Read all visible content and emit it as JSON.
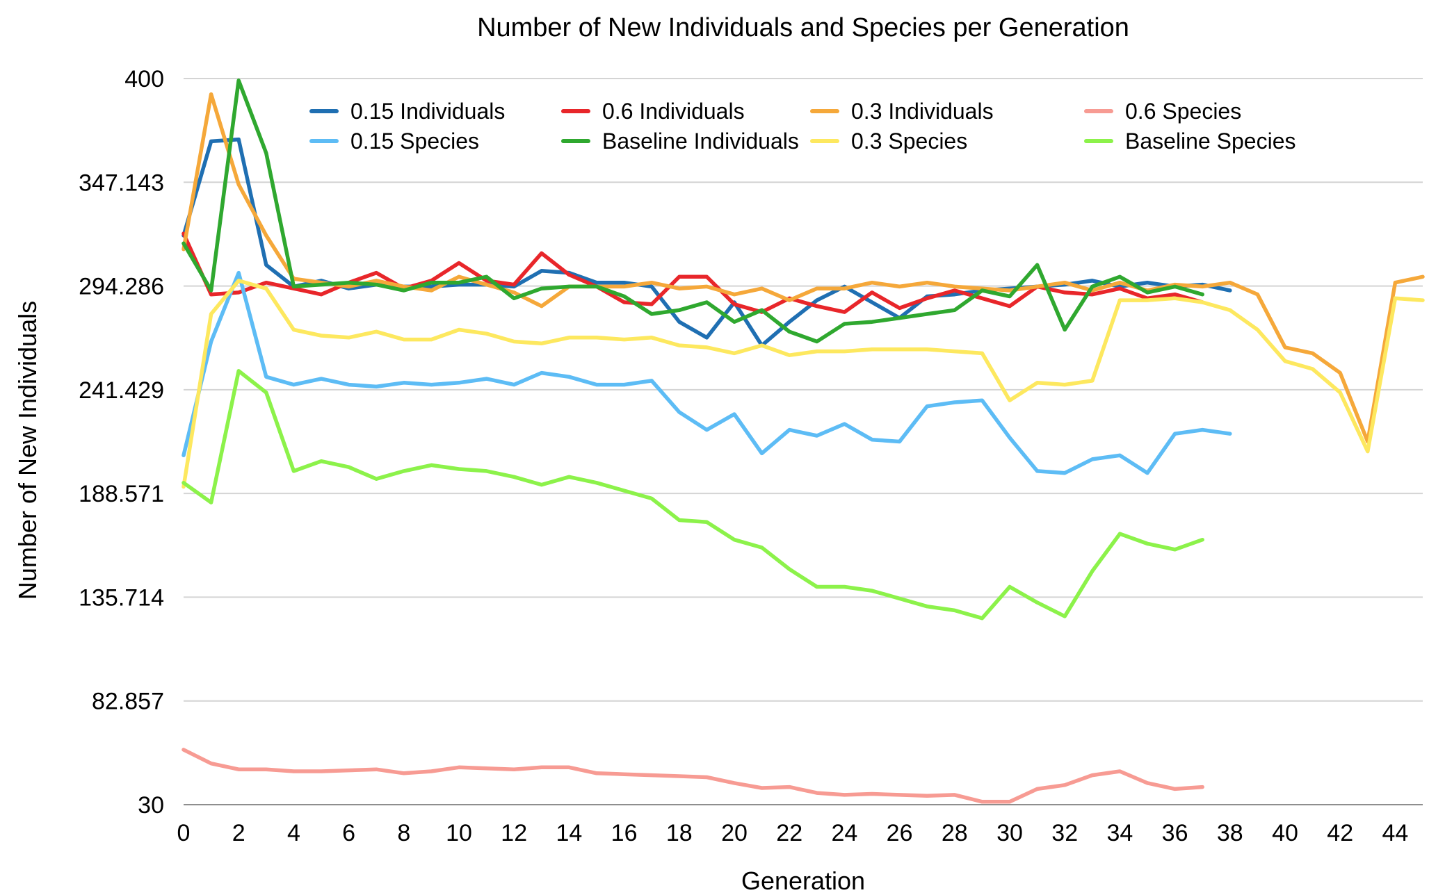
{
  "chart_data": {
    "type": "line",
    "title": "Number of New Individuals and Species per Generation",
    "xlabel": "Generation",
    "ylabel": "Number of New Individuals",
    "xlim": [
      0,
      45
    ],
    "ylim": [
      30,
      400
    ],
    "x_ticks": [
      "0",
      "2",
      "4",
      "6",
      "8",
      "10",
      "12",
      "14",
      "16",
      "18",
      "20",
      "22",
      "24",
      "26",
      "28",
      "30",
      "32",
      "34",
      "36",
      "38",
      "40",
      "42",
      "44"
    ],
    "y_ticks": [
      "30",
      "82.857",
      "135.714",
      "188.571",
      "241.429",
      "294.286",
      "347.143",
      "400"
    ],
    "grid": "horizontal",
    "legend_position": "top",
    "series": [
      {
        "name": "0.15 Individuals",
        "color": "#1f6fb2",
        "values": [
          320,
          368,
          369,
          305,
          294,
          297,
          293,
          295,
          294,
          294,
          295,
          295,
          294,
          302,
          301,
          296,
          296,
          294,
          276,
          268,
          286,
          264,
          276,
          287,
          294,
          286,
          278,
          289,
          290,
          292,
          293,
          294,
          295,
          297,
          294,
          296,
          294,
          295,
          292
        ]
      },
      {
        "name": "0.6 Individuals",
        "color": "#e8262a",
        "values": [
          321,
          290,
          291,
          296,
          293,
          290,
          296,
          301,
          293,
          297,
          306,
          297,
          295,
          311,
          300,
          294,
          286,
          285,
          299,
          299,
          285,
          281,
          288,
          284,
          281,
          291,
          283,
          288,
          292,
          288,
          284,
          294,
          291,
          290,
          293,
          288,
          290,
          286
        ]
      },
      {
        "name": "0.3 Individuals",
        "color": "#f5a83a",
        "values": [
          313,
          392,
          346,
          320,
          298,
          296,
          294,
          297,
          294,
          292,
          299,
          295,
          291,
          284,
          294,
          294,
          294,
          296,
          293,
          294,
          290,
          293,
          287,
          293,
          293,
          296,
          294,
          296,
          294,
          293,
          292,
          294,
          296,
          292,
          296,
          292,
          295,
          294,
          296,
          290,
          263,
          260,
          250,
          215,
          296,
          299
        ]
      },
      {
        "name": "0.6 Species",
        "color": "#f79b93",
        "values": [
          58,
          51,
          48,
          48,
          47,
          47,
          47.5,
          48,
          46,
          47,
          49,
          48.5,
          48,
          49,
          49,
          46,
          45.5,
          45,
          44.5,
          44,
          41,
          38.5,
          39,
          36,
          35,
          35.5,
          35,
          34.5,
          35,
          31.5,
          31.5,
          38,
          40,
          45,
          47,
          41,
          38,
          39
        ]
      },
      {
        "name": "0.15 Species",
        "color": "#5dbcf5",
        "values": [
          208,
          266,
          301,
          248,
          244,
          247,
          244,
          243,
          245,
          244,
          245,
          247,
          244,
          250,
          248,
          244,
          244,
          246,
          230,
          221,
          229,
          209,
          221,
          218,
          224,
          216,
          215,
          233,
          235,
          236,
          217,
          200,
          199,
          206,
          208,
          199,
          219,
          221,
          219
        ]
      },
      {
        "name": "Baseline Individuals",
        "color": "#2fa82f",
        "values": [
          316,
          292,
          399,
          362,
          294,
          295,
          296,
          295,
          292,
          296,
          296,
          299,
          288,
          293,
          294,
          294,
          289,
          280,
          282,
          286,
          276,
          282,
          271,
          266,
          275,
          276,
          278,
          280,
          282,
          292,
          289,
          305,
          272,
          294,
          299,
          291,
          294,
          290
        ]
      },
      {
        "name": "0.3 Species",
        "color": "#fde85f",
        "values": [
          192,
          280,
          297,
          293,
          272,
          269,
          268,
          271,
          267,
          267,
          272,
          270,
          266,
          265,
          268,
          268,
          267,
          268,
          264,
          263,
          260,
          264,
          259,
          261,
          261,
          262,
          262,
          262,
          261,
          260,
          236,
          245,
          244,
          246,
          287,
          287,
          288,
          286,
          282,
          272,
          256,
          252,
          240,
          210,
          288,
          287
        ]
      },
      {
        "name": "Baseline Species",
        "color": "#8cf24a",
        "values": [
          194,
          184,
          251,
          240,
          200,
          205,
          202,
          196,
          200,
          203,
          201,
          200,
          197,
          193,
          197,
          194,
          190,
          186,
          175,
          174,
          165,
          161,
          150,
          141,
          141,
          139,
          135,
          131,
          129,
          125,
          141,
          133,
          126,
          149,
          168,
          163,
          160,
          165
        ]
      }
    ]
  }
}
